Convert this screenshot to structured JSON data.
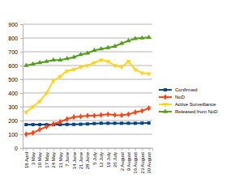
{
  "chart_data": {
    "type": "line",
    "categories": [
      "18 April",
      "3 May",
      "10 May",
      "17 May",
      "24 May",
      "31 May",
      "7 June",
      "14 June",
      "21 June",
      "28 June",
      "5 July",
      "12 July",
      "19 July",
      "26 July",
      "2 August",
      "9 August",
      "16 August",
      "23 August",
      "30 August"
    ],
    "series": [
      {
        "name": "Confirmed",
        "color": "#004586",
        "marker": "square",
        "values": [
          170,
          170,
          170,
          170,
          170,
          170,
          172,
          172,
          173,
          175,
          178,
          180,
          180,
          180,
          180,
          180,
          180,
          181,
          182
        ]
      },
      {
        "name": "NoD",
        "color": "#ff420e",
        "marker": "diamond",
        "values": [
          100,
          110,
          135,
          155,
          175,
          190,
          210,
          225,
          230,
          235,
          235,
          240,
          245,
          240,
          238,
          245,
          260,
          270,
          290
        ]
      },
      {
        "name": "Active Surveillance",
        "color": "#ffd320",
        "marker": "triangle-down",
        "values": [
          260,
          300,
          340,
          400,
          490,
          520,
          560,
          570,
          590,
          600,
          620,
          640,
          630,
          600,
          590,
          630,
          570,
          545,
          540
        ]
      },
      {
        "name": "Released from NoD",
        "color": "#579d1c",
        "marker": "triangle-up",
        "values": [
          600,
          610,
          620,
          630,
          640,
          640,
          650,
          660,
          680,
          690,
          710,
          720,
          730,
          740,
          760,
          780,
          795,
          800,
          805
        ]
      }
    ],
    "ylim": [
      0,
      900
    ],
    "yticks": [
      0,
      100,
      200,
      300,
      400,
      500,
      600,
      700,
      800,
      900
    ],
    "grid": true,
    "legend": "right"
  }
}
